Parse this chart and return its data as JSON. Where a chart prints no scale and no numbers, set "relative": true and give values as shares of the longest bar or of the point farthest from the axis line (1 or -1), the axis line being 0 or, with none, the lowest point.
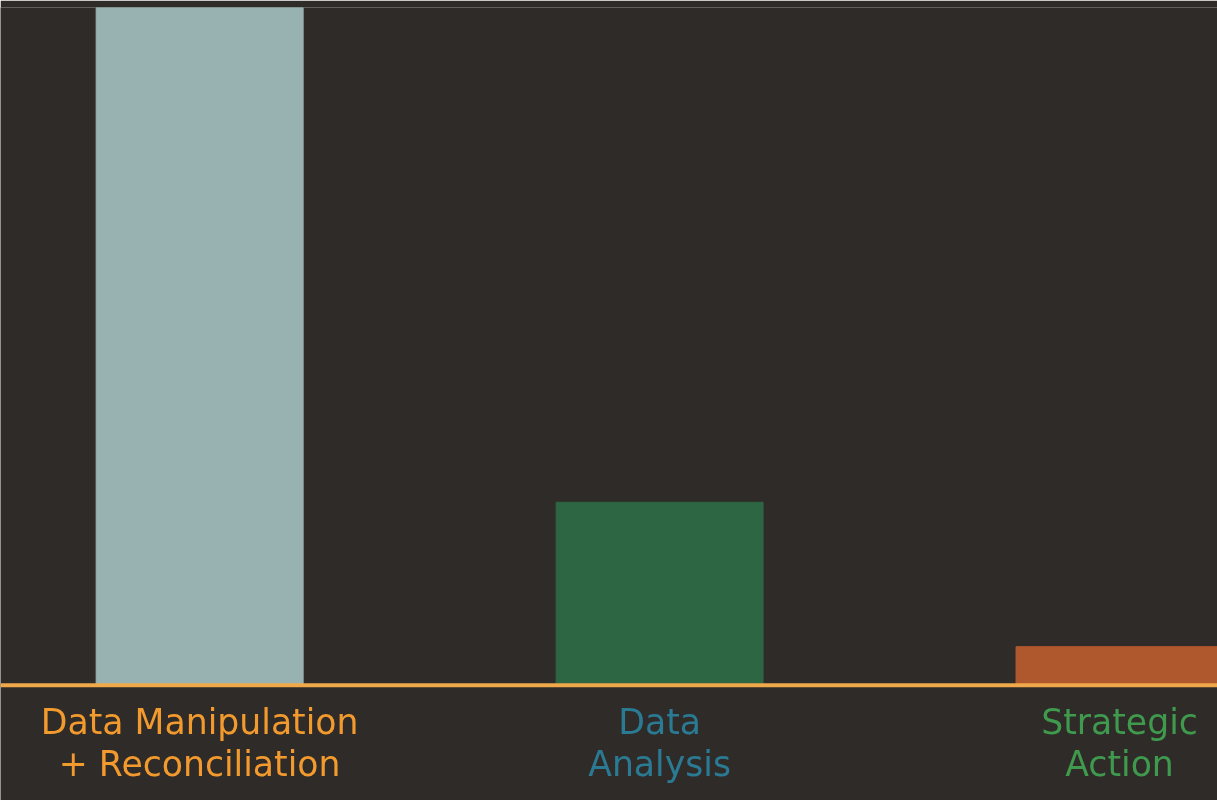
{
  "chart_data": {
    "type": "bar",
    "relative": true,
    "categories": [
      "Data Manipulation\n+ Reconciliation",
      "Data\nAnalysis",
      "Strategic\nAction"
    ],
    "values": [
      1,
      0.27,
      0.057
    ],
    "colors": [
      "#98b2b2",
      "#2d6642",
      "#b0582d"
    ],
    "grid": false
  }
}
